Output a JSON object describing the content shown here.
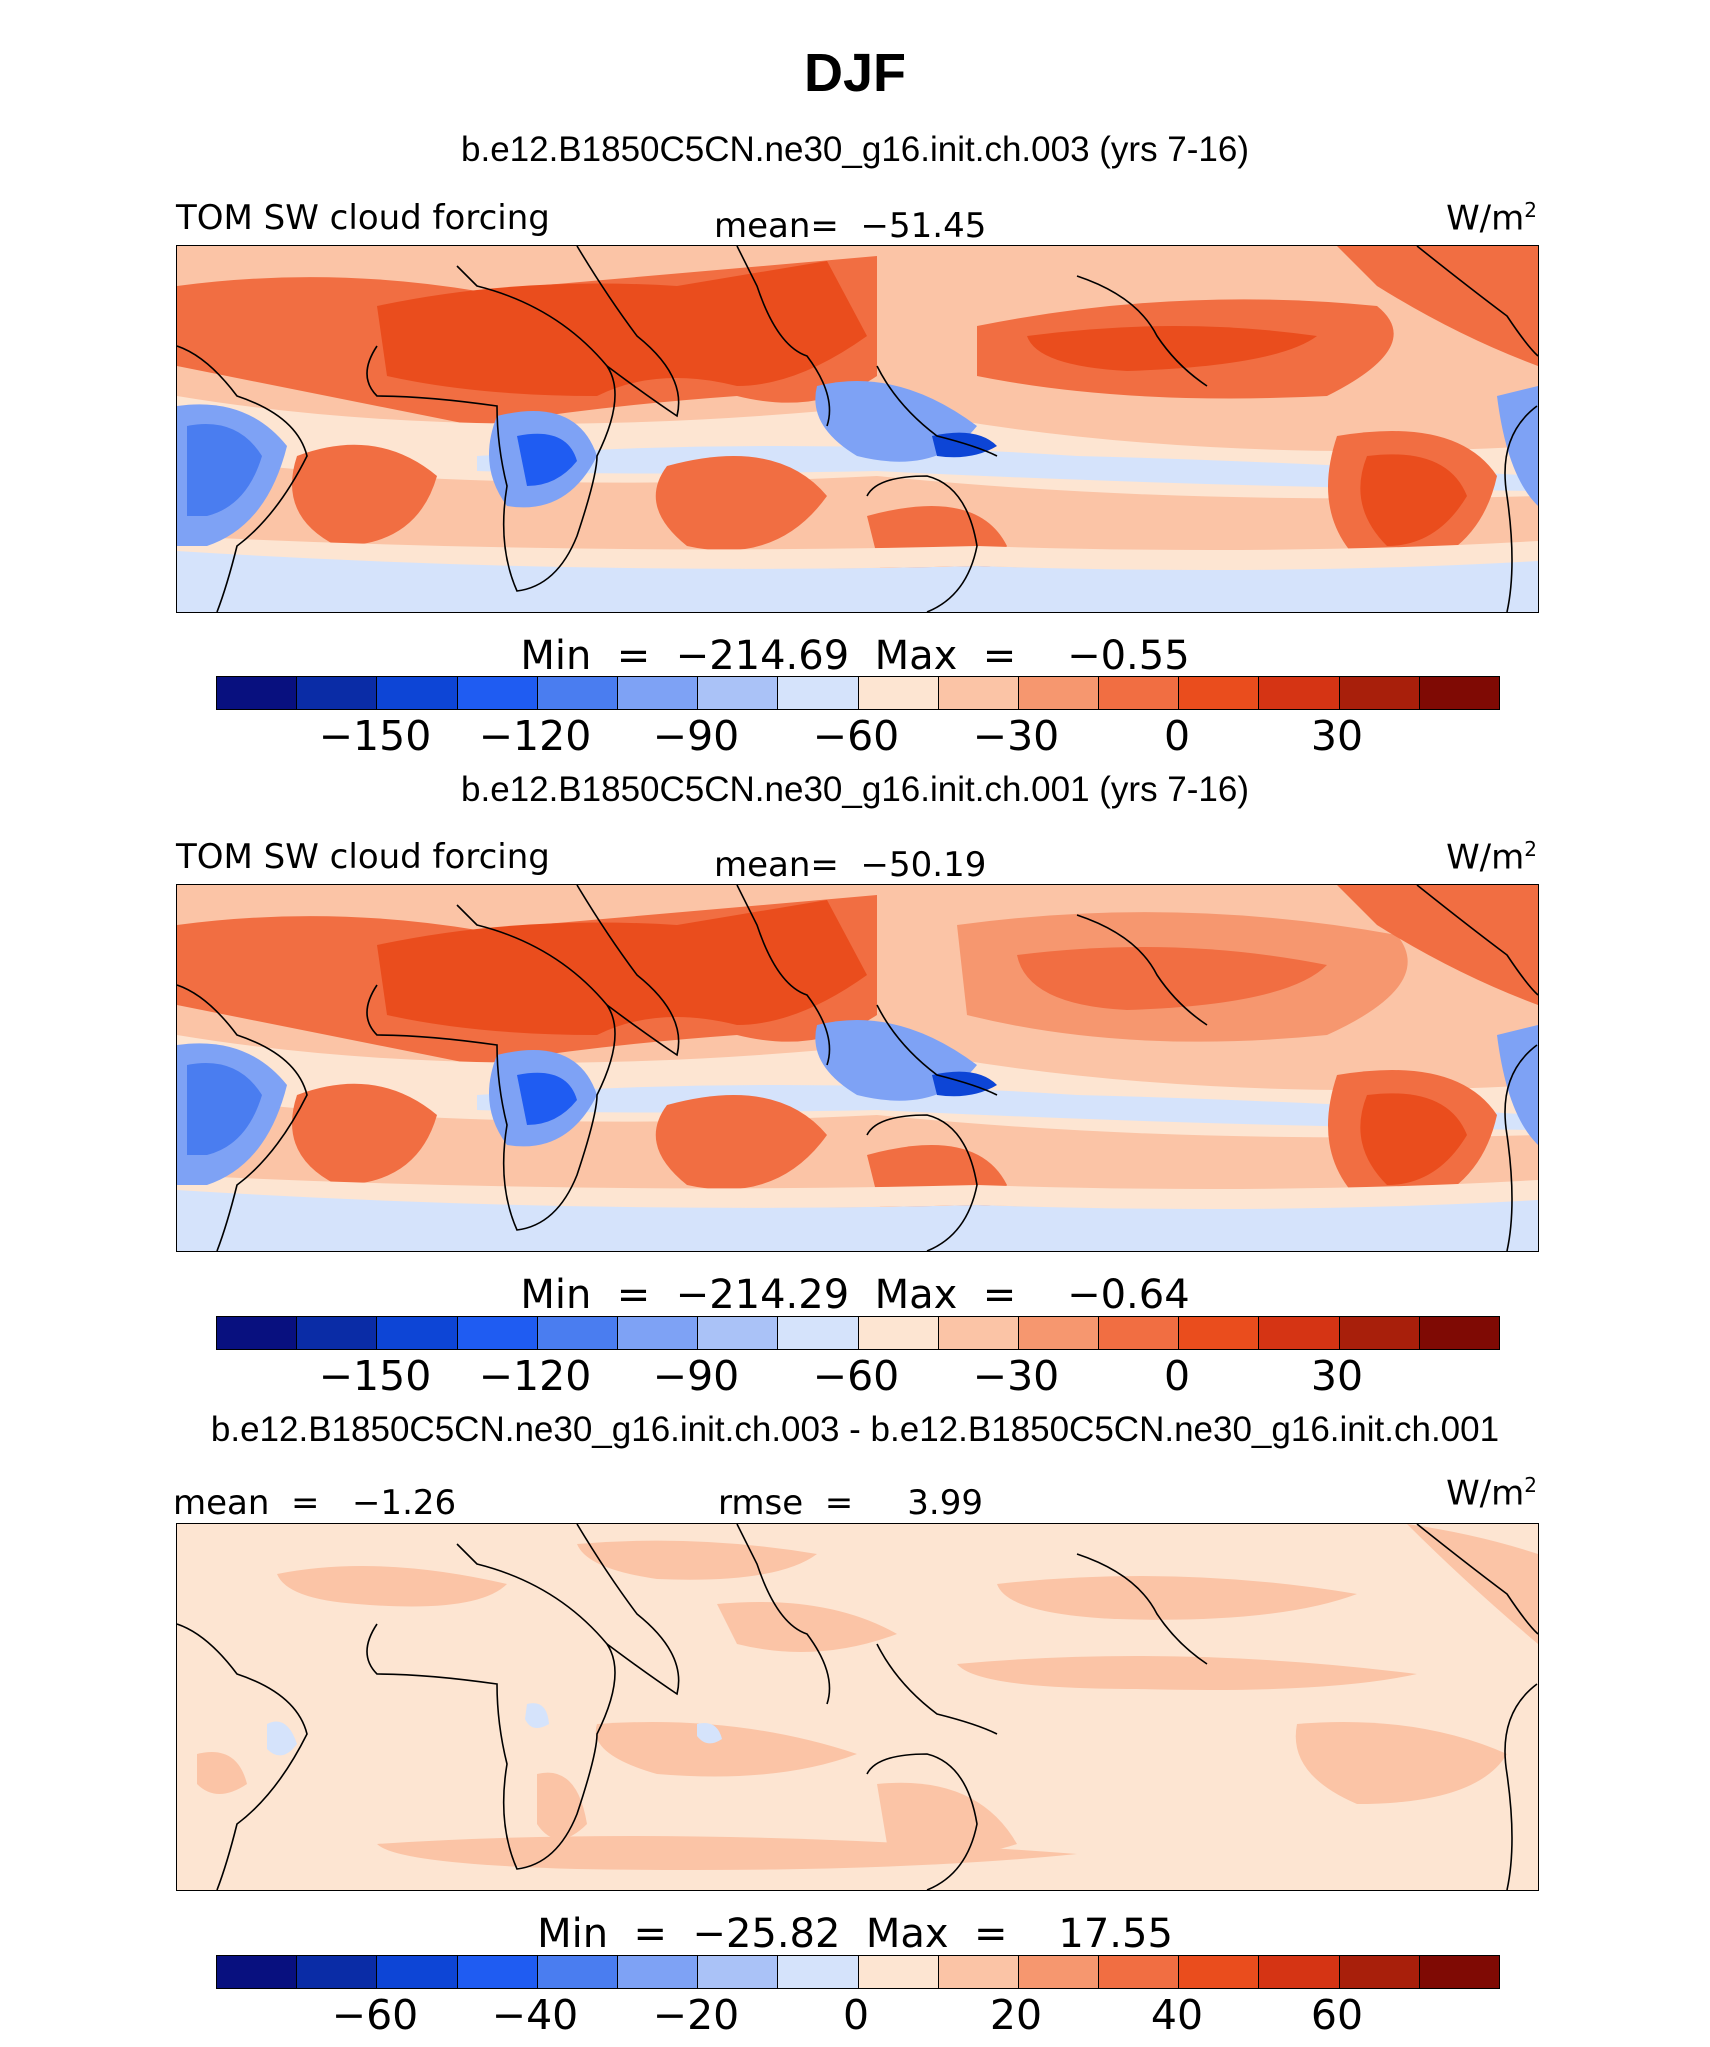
{
  "title": "DJF",
  "palette": [
    "#08107f",
    "#0a2ca6",
    "#0d45d6",
    "#1f5cf2",
    "#4a7df0",
    "#7ea2f5",
    "#aac2f7",
    "#d5e3fb",
    "#fde5d2",
    "#fbc4a6",
    "#f6976f",
    "#f16e42",
    "#ea4d1d",
    "#d53414",
    "#a81f0b",
    "#7f0a04"
  ],
  "coastline_color": "#000000",
  "panels": [
    {
      "title": "b.e12.B1850C5CN.ne30_g16.init.ch.003 (yrs 7-16)",
      "left_label": "TOM SW cloud forcing",
      "center_label": "mean=  −51.45",
      "units": "W/m",
      "units_sup": "2",
      "minmax": "Min  =  −214.69  Max  =    −0.55",
      "ticks": [
        "−150",
        "−120",
        "−90",
        "−60",
        "−30",
        "0",
        "30"
      ]
    },
    {
      "title": "b.e12.B1850C5CN.ne30_g16.init.ch.001 (yrs 7-16)",
      "left_label": "TOM SW cloud forcing",
      "center_label": "mean=  −50.19",
      "units": "W/m",
      "units_sup": "2",
      "minmax": "Min  =  −214.29  Max  =    −0.64",
      "ticks": [
        "−150",
        "−120",
        "−90",
        "−60",
        "−30",
        "0",
        "30"
      ]
    },
    {
      "title": "b.e12.B1850C5CN.ne30_g16.init.ch.003 - b.e12.B1850C5CN.ne30_g16.init.ch.001",
      "left_label": "mean  =   −1.26",
      "center_label": "rmse  =     3.99",
      "units": "W/m",
      "units_sup": "2",
      "minmax": "Min  =  −25.82  Max  =    17.55",
      "ticks": [
        "−60",
        "−40",
        "−20",
        "0",
        "20",
        "40",
        "60"
      ]
    }
  ]
}
